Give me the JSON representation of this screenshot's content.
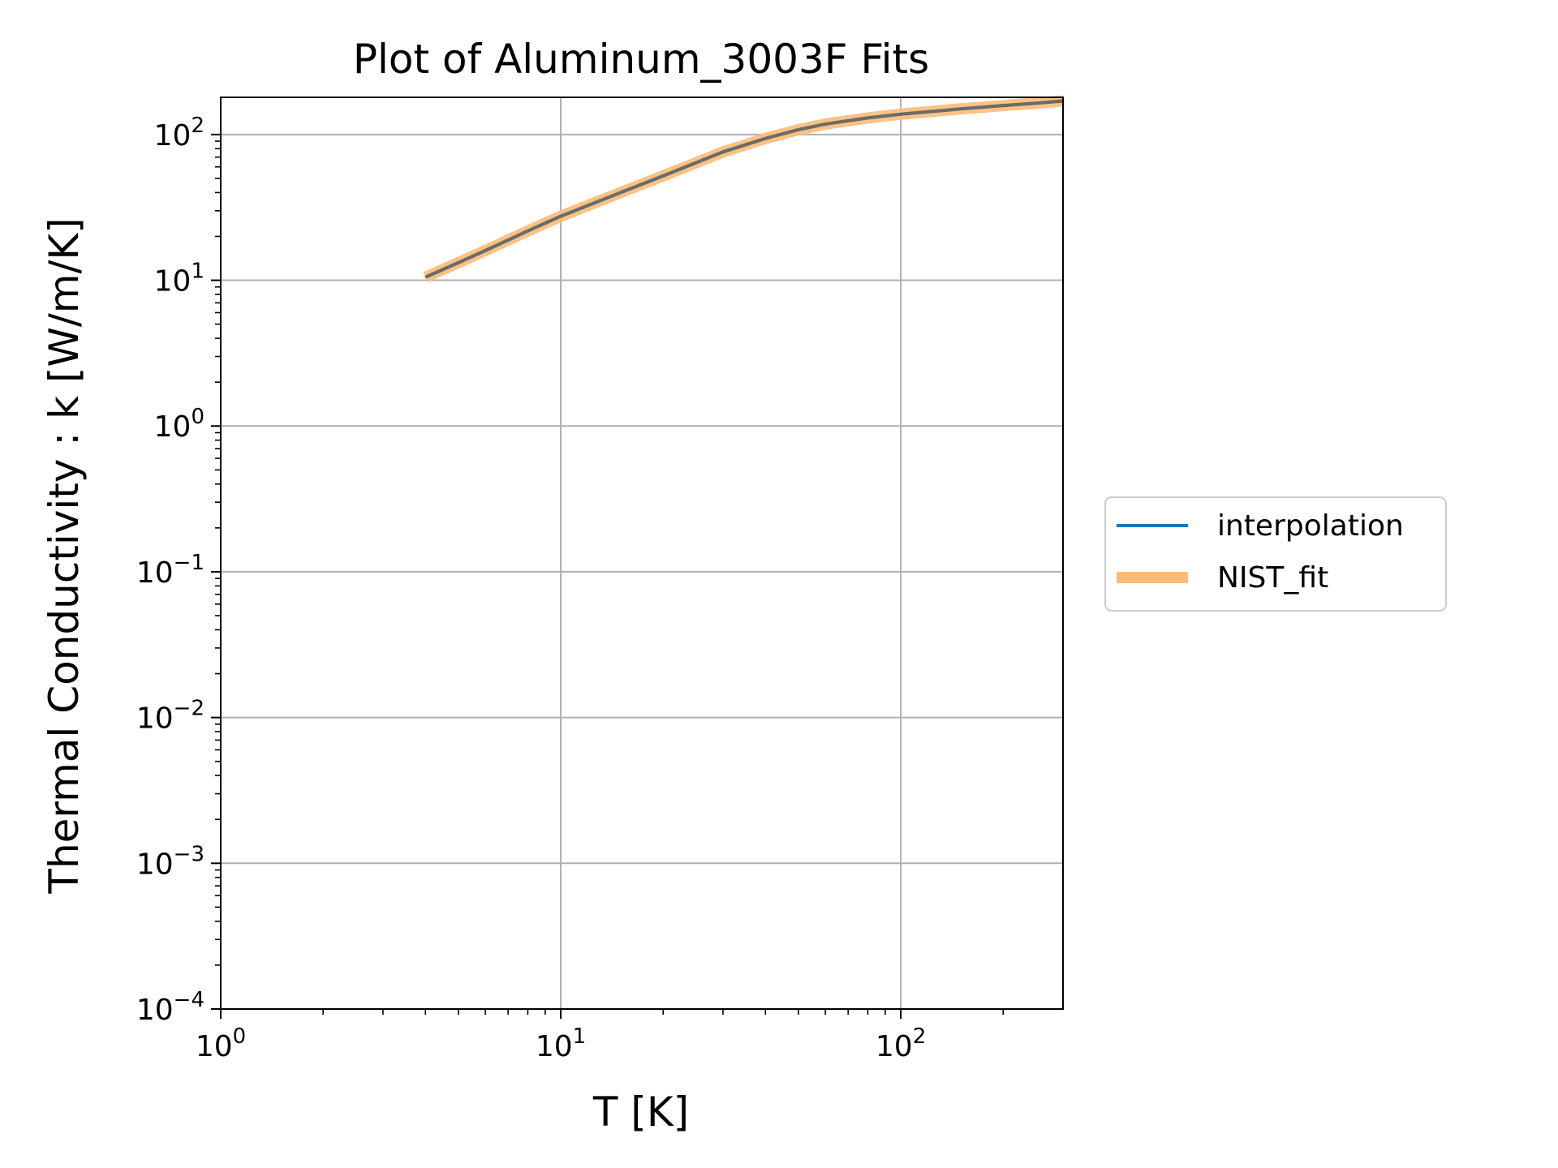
{
  "chart_data": {
    "type": "line",
    "title": "Plot of Aluminum_3003F Fits",
    "xlabel": "T [K]",
    "ylabel": "Thermal Conductivity : k [W/m/K]",
    "xscale": "log",
    "yscale": "log",
    "xlim": [
      1,
      300
    ],
    "ylim": [
      0.0001,
      180
    ],
    "x_ticks": [
      {
        "value": 1,
        "base": "10",
        "exp": "0"
      },
      {
        "value": 10,
        "base": "10",
        "exp": "1"
      },
      {
        "value": 100,
        "base": "10",
        "exp": "2"
      }
    ],
    "y_ticks": [
      {
        "value": 0.0001,
        "base": "10",
        "exp": "−4"
      },
      {
        "value": 0.001,
        "base": "10",
        "exp": "−3"
      },
      {
        "value": 0.01,
        "base": "10",
        "exp": "−2"
      },
      {
        "value": 0.1,
        "base": "10",
        "exp": "−1"
      },
      {
        "value": 1,
        "base": "10",
        "exp": "0"
      },
      {
        "value": 10,
        "base": "10",
        "exp": "1"
      },
      {
        "value": 100,
        "base": "10",
        "exp": "2"
      }
    ],
    "grid": true,
    "legend_position": "outside-right",
    "series": [
      {
        "name": "interpolation",
        "color": "#1f77b4",
        "x": [
          4,
          5,
          6,
          8,
          10,
          15,
          20,
          30,
          40,
          50,
          60,
          80,
          100,
          150,
          200,
          250,
          300
        ],
        "y": [
          10.5,
          13.2,
          16,
          21.8,
          27.5,
          40,
          52,
          76,
          94,
          108,
          118,
          130,
          138,
          150,
          158,
          164,
          170
        ]
      },
      {
        "name": "NIST_fit",
        "color": "#ffbb78",
        "x": [
          4,
          5,
          6,
          8,
          10,
          15,
          20,
          30,
          40,
          50,
          60,
          80,
          100,
          150,
          200,
          250,
          300
        ],
        "y": [
          10.5,
          13.2,
          16,
          21.8,
          27.5,
          40,
          52,
          76,
          94,
          108,
          118,
          130,
          138,
          150,
          158,
          164,
          170
        ]
      }
    ]
  }
}
